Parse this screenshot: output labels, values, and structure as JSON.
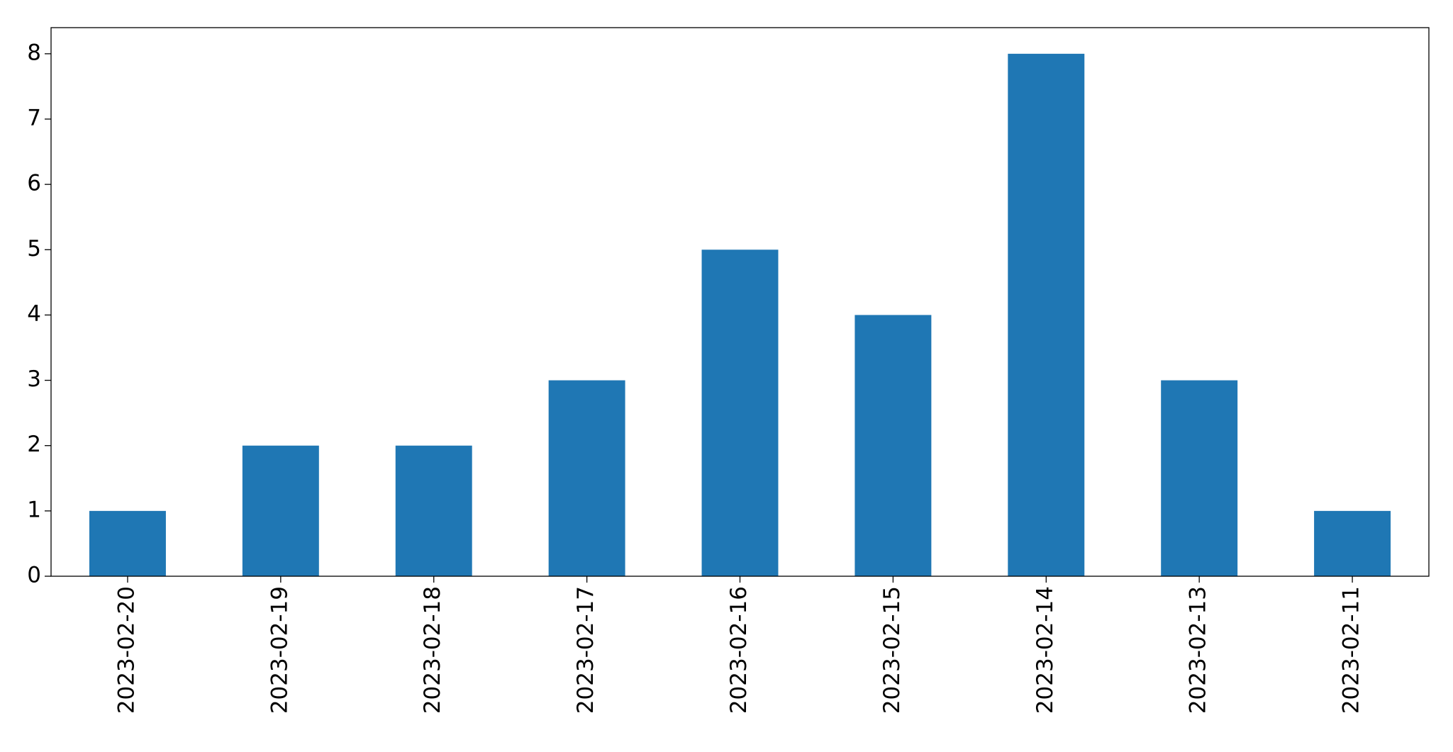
{
  "chart_data": {
    "type": "bar",
    "categories": [
      "2023-02-20",
      "2023-02-19",
      "2023-02-18",
      "2023-02-17",
      "2023-02-16",
      "2023-02-15",
      "2023-02-14",
      "2023-02-13",
      "2023-02-11"
    ],
    "values": [
      1,
      2,
      2,
      3,
      5,
      4,
      8,
      3,
      1
    ],
    "color": "#1f77b4",
    "ylim": [
      0,
      8.4
    ],
    "yticks": [
      0,
      1,
      2,
      3,
      4,
      5,
      6,
      7,
      8
    ],
    "grid": false
  }
}
